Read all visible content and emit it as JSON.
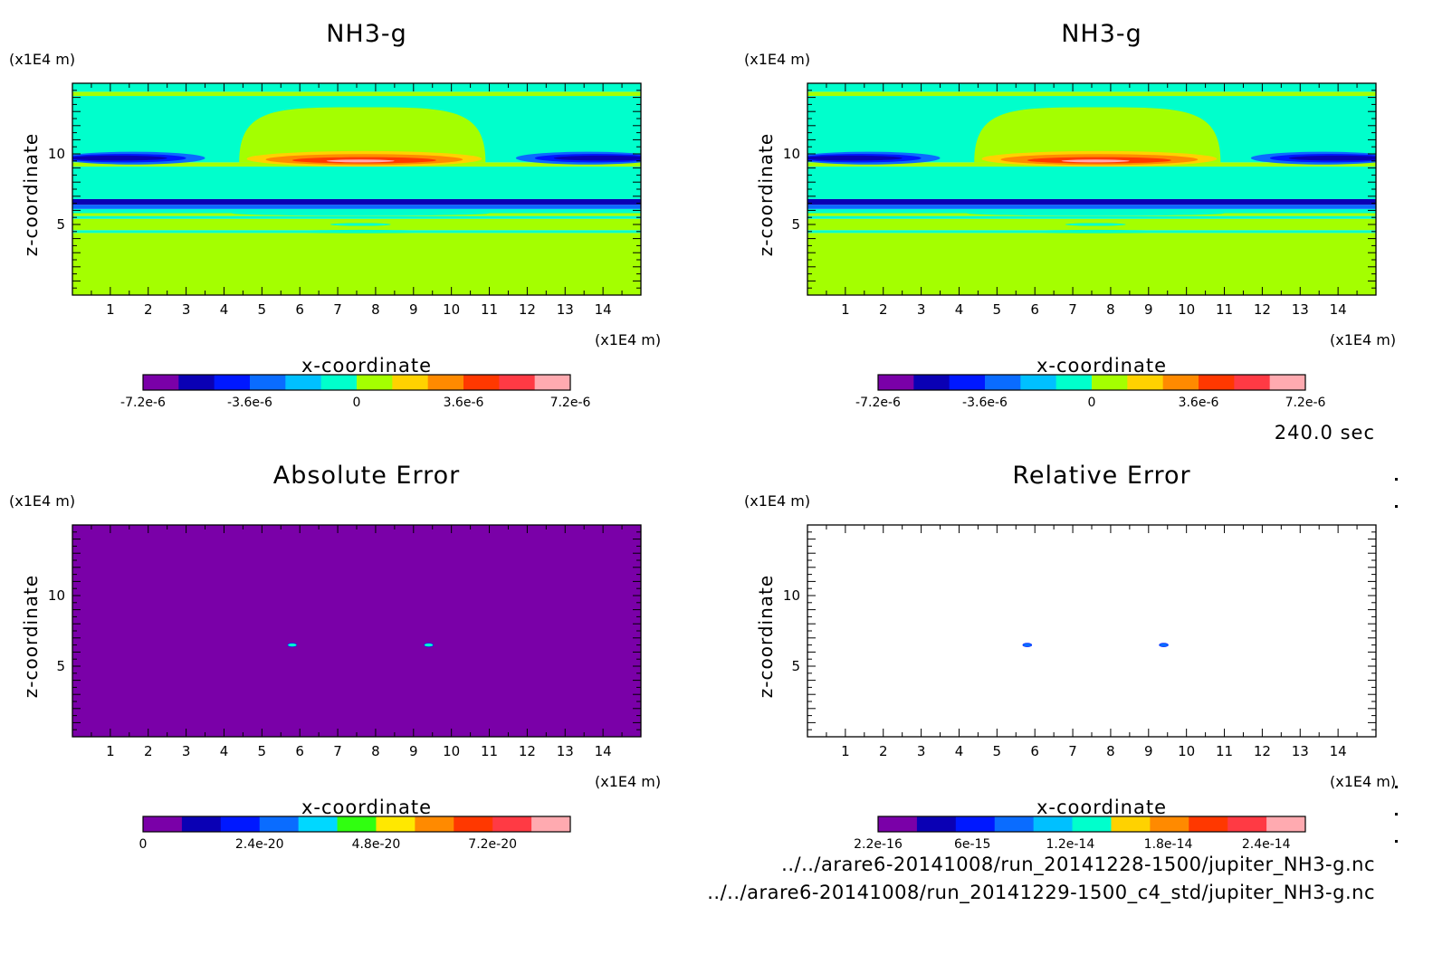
{
  "time_label": "240.0 sec",
  "files": [
    "../../arare6-20141008/run_20141228-1500/jupiter_NH3-g.nc",
    "../../arare6-20141008/run_20141229-1500_c4_std/jupiter_NH3-g.nc"
  ],
  "chart_data": [
    {
      "type": "heatmap",
      "title": "NH3-g",
      "xlabel": "x-coordinate",
      "ylabel": "z-coordinate",
      "x_unit": "(x1E4 m)",
      "y_unit": "(x1E4 m)",
      "xlim": [
        0,
        15
      ],
      "ylim": [
        0,
        15
      ],
      "x_ticks": [
        "1",
        "2",
        "3",
        "4",
        "5",
        "6",
        "7",
        "8",
        "9",
        "10",
        "11",
        "12",
        "13",
        "14"
      ],
      "y_ticks": [
        "5",
        "10"
      ],
      "colorbar": {
        "colors": [
          "#7a00a8",
          "#0a00b4",
          "#0018ff",
          "#0a6cff",
          "#00c0ff",
          "#00ffcc",
          "#a4ff00",
          "#ffd200",
          "#ff8a00",
          "#ff3800",
          "#ff3a44",
          "#ffaab0"
        ],
        "tick_labels": [
          "-7.2e-6",
          "-3.6e-6",
          "0",
          "3.6e-6",
          "7.2e-6"
        ],
        "range": [
          -7.2e-06,
          7.2e-06
        ]
      },
      "bands": [
        {
          "z": [
            0,
            4.4
          ],
          "color": "#a4ff00"
        },
        {
          "z": [
            4.4,
            4.6
          ],
          "color": "#00ffcc"
        },
        {
          "z": [
            4.6,
            5.4
          ],
          "color": "#a4ff00"
        },
        {
          "z": [
            5.4,
            5.6
          ],
          "color": "#00ffcc"
        },
        {
          "z": [
            5.6,
            5.8
          ],
          "color": "#a4ff00"
        },
        {
          "z": [
            5.8,
            6.1
          ],
          "color": "#00ffcc"
        },
        {
          "z": [
            6.1,
            6.4
          ],
          "color": "#0a6cff"
        },
        {
          "z": [
            6.4,
            6.8
          ],
          "color": "#0a00b4"
        },
        {
          "z": [
            6.8,
            9.1
          ],
          "color": "#00ffcc"
        },
        {
          "z": [
            9.1,
            9.4
          ],
          "color": "#a4ff00"
        },
        {
          "z": [
            9.4,
            14.1
          ],
          "color": "#00ffcc"
        },
        {
          "z": [
            14.1,
            14.4
          ],
          "color": "#a4ff00"
        },
        {
          "z": [
            14.4,
            15
          ],
          "color": "#00ffcc"
        }
      ],
      "features": [
        {
          "shape": "dome",
          "x": [
            4.4,
            10.9
          ],
          "z": [
            9.4,
            13.3
          ],
          "color": "#a4ff00"
        },
        {
          "shape": "ellipse",
          "cx": 7.7,
          "cz": 9.65,
          "rx": 3.1,
          "rz": 0.55,
          "color": "#ffd200"
        },
        {
          "shape": "ellipse",
          "cx": 7.7,
          "cz": 9.6,
          "rx": 2.6,
          "rz": 0.38,
          "color": "#ff8a00"
        },
        {
          "shape": "ellipse",
          "cx": 7.7,
          "cz": 9.55,
          "rx": 1.9,
          "rz": 0.22,
          "color": "#ff3800"
        },
        {
          "shape": "ellipse",
          "cx": 7.6,
          "cz": 9.5,
          "rx": 0.9,
          "rz": 0.1,
          "color": "#ffaab0"
        },
        {
          "shape": "ellipse",
          "cx": 1.6,
          "cz": 9.7,
          "rx": 1.9,
          "rz": 0.45,
          "color": "#0a6cff"
        },
        {
          "shape": "ellipse",
          "cx": 1.4,
          "cz": 9.7,
          "rx": 1.6,
          "rz": 0.3,
          "color": "#0018ff"
        },
        {
          "shape": "ellipse",
          "cx": 1.2,
          "cz": 9.7,
          "rx": 1.3,
          "rz": 0.18,
          "color": "#0a00b4"
        },
        {
          "shape": "ellipse",
          "cx": 13.6,
          "cz": 9.7,
          "rx": 1.9,
          "rz": 0.45,
          "color": "#0a6cff"
        },
        {
          "shape": "ellipse",
          "cx": 13.8,
          "cz": 9.7,
          "rx": 1.6,
          "rz": 0.3,
          "color": "#0018ff"
        },
        {
          "shape": "ellipse",
          "cx": 14.0,
          "cz": 9.7,
          "rx": 1.3,
          "rz": 0.18,
          "color": "#0a00b4"
        },
        {
          "shape": "ellipse",
          "cx": 7.6,
          "cz": 5.8,
          "rx": 3.4,
          "rz": 0.18,
          "color": "#00ffcc"
        },
        {
          "shape": "ellipse",
          "cx": 7.6,
          "cz": 4.5,
          "rx": 1.9,
          "rz": 0.12,
          "color": "#00ffcc"
        },
        {
          "shape": "ellipse",
          "cx": 7.6,
          "cz": 5.0,
          "rx": 0.8,
          "rz": 0.1,
          "color": "#00ffcc"
        }
      ]
    },
    {
      "type": "heatmap",
      "title": "NH3-g",
      "xlabel": "x-coordinate",
      "ylabel": "z-coordinate",
      "x_unit": "(x1E4 m)",
      "y_unit": "(x1E4 m)",
      "xlim": [
        0,
        15
      ],
      "ylim": [
        0,
        15
      ],
      "x_ticks": [
        "1",
        "2",
        "3",
        "4",
        "5",
        "6",
        "7",
        "8",
        "9",
        "10",
        "11",
        "12",
        "13",
        "14"
      ],
      "y_ticks": [
        "5",
        "10"
      ],
      "colorbar": {
        "colors": [
          "#7a00a8",
          "#0a00b4",
          "#0018ff",
          "#0a6cff",
          "#00c0ff",
          "#00ffcc",
          "#a4ff00",
          "#ffd200",
          "#ff8a00",
          "#ff3800",
          "#ff3a44",
          "#ffaab0"
        ],
        "tick_labels": [
          "-7.2e-6",
          "-3.6e-6",
          "0",
          "3.6e-6",
          "7.2e-6"
        ],
        "range": [
          -7.2e-06,
          7.2e-06
        ]
      },
      "bands": "same_as_0",
      "features": "same_as_0"
    },
    {
      "type": "heatmap",
      "title": "Absolute Error",
      "xlabel": "x-coordinate",
      "ylabel": "z-coordinate",
      "x_unit": "(x1E4 m)",
      "y_unit": "(x1E4 m)",
      "xlim": [
        0,
        15
      ],
      "ylim": [
        0,
        15
      ],
      "x_ticks": [
        "1",
        "2",
        "3",
        "4",
        "5",
        "6",
        "7",
        "8",
        "9",
        "10",
        "11",
        "12",
        "13",
        "14"
      ],
      "y_ticks": [
        "5",
        "10"
      ],
      "background": "#7a00a8",
      "colorbar": {
        "colors": [
          "#7a00a8",
          "#0a00b4",
          "#0018ff",
          "#0a6cff",
          "#00d8ff",
          "#30ff10",
          "#ffe800",
          "#ff8a00",
          "#ff3800",
          "#ff3a44",
          "#ffaab0"
        ],
        "tick_labels": [
          "0",
          "2.4e-20",
          "4.8e-20",
          "7.2e-20"
        ],
        "range": [
          0,
          8.8e-20
        ]
      },
      "spots": [
        {
          "x": 5.8,
          "z": 6.5,
          "color": "#00ffcc"
        },
        {
          "x": 9.4,
          "z": 6.5,
          "color": "#00ffcc"
        }
      ]
    },
    {
      "type": "heatmap",
      "title": "Relative Error",
      "xlabel": "x-coordinate",
      "ylabel": "z-coordinate",
      "x_unit": "(x1E4 m)",
      "y_unit": "(x1E4 m)",
      "xlim": [
        0,
        15
      ],
      "ylim": [
        0,
        15
      ],
      "x_ticks": [
        "1",
        "2",
        "3",
        "4",
        "5",
        "6",
        "7",
        "8",
        "9",
        "10",
        "11",
        "12",
        "13",
        "14"
      ],
      "y_ticks": [
        "5",
        "10"
      ],
      "background": "#ffffff",
      "colorbar": {
        "colors": [
          "#7a00a8",
          "#0a00b4",
          "#0018ff",
          "#0a6cff",
          "#00c0ff",
          "#00ffcc",
          "#ffd200",
          "#ff8a00",
          "#ff3800",
          "#ff3a44",
          "#ffaab0"
        ],
        "tick_labels": [
          "2.2e-16",
          "6e-15",
          "1.2e-14",
          "1.8e-14",
          "2.4e-14"
        ],
        "range": [
          2.2e-16,
          2.64e-14
        ]
      },
      "spots": [
        {
          "x": 5.8,
          "z": 6.5,
          "color": "#0a6cff"
        },
        {
          "x": 9.4,
          "z": 6.5,
          "color": "#0a6cff"
        }
      ]
    }
  ]
}
